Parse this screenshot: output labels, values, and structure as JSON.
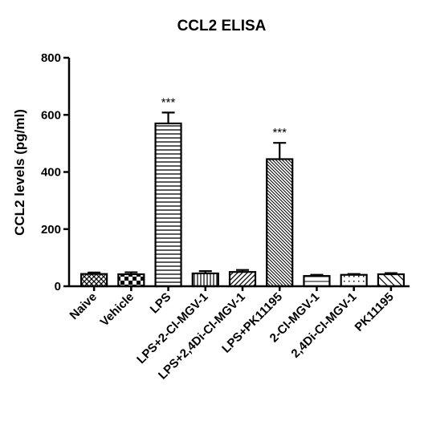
{
  "chart_data": {
    "type": "bar",
    "title": "CCL2 ELISA",
    "xlabel": "",
    "ylabel": "CCL2 levels (pg/ml)",
    "ylim": [
      0,
      800
    ],
    "yticks": [
      "0",
      "200",
      "400",
      "600",
      "800"
    ],
    "categories": [
      "Naive",
      "Vehicle",
      "LPS",
      "LPS+2-Cl-MGV-1",
      "LPS+2,4Di-Cl-MGV-1",
      "LPS+PK11195",
      "2-Cl-MGV-1",
      "2,4Di-Cl-MGV-1",
      "PK11195"
    ],
    "values": [
      43,
      42,
      570,
      45,
      50,
      445,
      36,
      40,
      42
    ],
    "errors": [
      5,
      7,
      38,
      8,
      7,
      57,
      4,
      3,
      4
    ],
    "significance": [
      "",
      "",
      "***",
      "",
      "",
      "***",
      "",
      "",
      ""
    ],
    "patterns": [
      "crosshatch",
      "checker",
      "horizontal",
      "vertical",
      "diag-right",
      "diag-dense",
      "horizontal-sparse",
      "dots-sparse",
      "diag-left"
    ],
    "bar_color": "#000000",
    "grid": false,
    "legend": "none"
  }
}
